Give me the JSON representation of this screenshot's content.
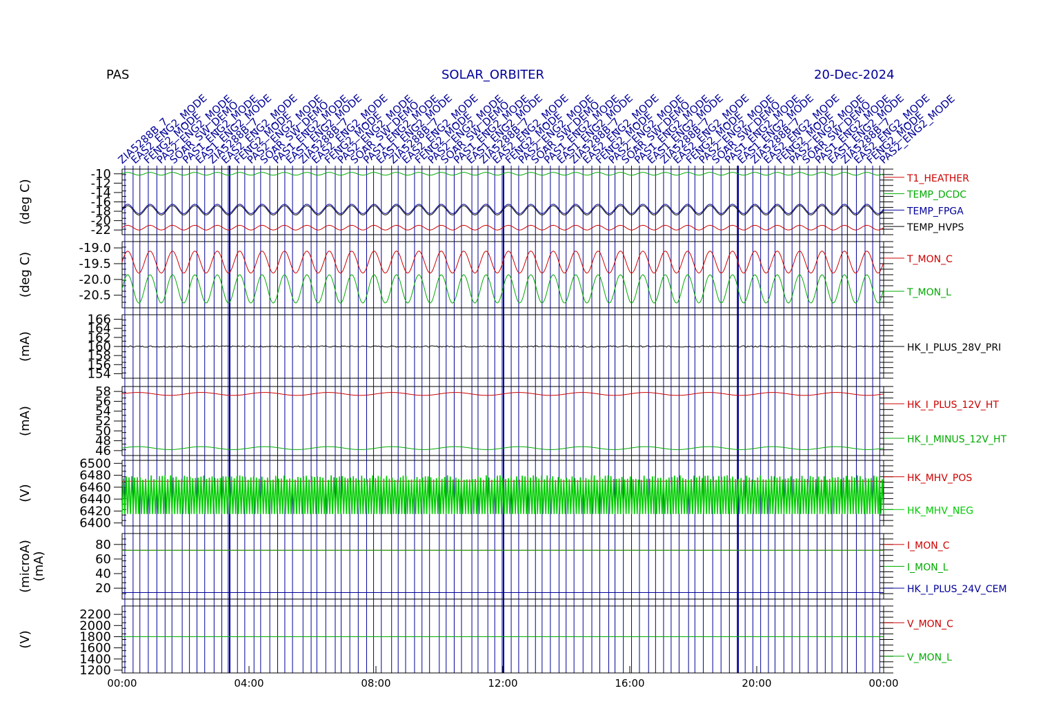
{
  "chart_data": {
    "type": "line",
    "instrument": "PAS",
    "mission": "SOLAR_ORBITER",
    "date": "20-Dec-2024",
    "colors": {
      "red": "#cc0000",
      "green": "#00aa00",
      "blue": "#000099",
      "black": "#000000",
      "bright_green": "#00cc00"
    },
    "x_axis": {
      "ticks": [
        "00:00",
        "04:00",
        "08:00",
        "12:00",
        "16:00",
        "20:00",
        "00:00"
      ]
    },
    "event_labels": [
      "ZIA5288B_7",
      "EAS2_ENG2_MODE",
      "FENG2_MODE",
      "PAS2_ENG2_MODE",
      "SOAR_SW_DEMO",
      "PAS1_ENG2_MODE",
      "EAS1_ENG2_MODE"
    ],
    "panels": [
      {
        "ylabel": "(deg C)",
        "ticks": [
          "-10",
          "-12",
          "-14",
          "-16",
          "-18",
          "-20",
          "-22"
        ],
        "ylim": [
          -23,
          -9
        ],
        "series": [
          {
            "name": "T1_HEATHER",
            "color": "red",
            "base": -21.5,
            "amp": 0.5,
            "cycles": 34
          },
          {
            "name": "TEMP_DCDC",
            "color": "green",
            "base": -10,
            "amp": 0.3,
            "cycles": 34
          },
          {
            "name": "TEMP_FPGA",
            "color": "blue",
            "base": -17.5,
            "amp": 1,
            "cycles": 34
          },
          {
            "name": "TEMP_HVPS",
            "color": "black",
            "base": -17.8,
            "amp": 1,
            "cycles": 34
          }
        ]
      },
      {
        "ylabel": "(deg C)",
        "ticks": [
          "-19.0",
          "-19.5",
          "-20.0",
          "-20.5"
        ],
        "ylim": [
          -20.9,
          -18.8
        ],
        "series": [
          {
            "name": "T_MON_C",
            "color": "red",
            "base": -19.45,
            "amp": 0.35,
            "cycles": 34
          },
          {
            "name": "T_MON_L",
            "color": "green",
            "base": -20.3,
            "amp": 0.45,
            "cycles": 34
          }
        ]
      },
      {
        "ylabel": "(mA)",
        "ticks": [
          "166",
          "164",
          "162",
          "160",
          "158",
          "156",
          "154"
        ],
        "ylim": [
          153,
          167
        ],
        "series": [
          {
            "name": "HK_I_PLUS_28V_PRI",
            "color": "black",
            "base": 160,
            "amp": 0.15,
            "cycles": 0
          }
        ]
      },
      {
        "ylabel": "(mA)",
        "ticks": [
          "58",
          "56",
          "54",
          "52",
          "50",
          "48",
          "46"
        ],
        "ylim": [
          45,
          59
        ],
        "series": [
          {
            "name": "HK_I_PLUS_12V_HT",
            "color": "red",
            "base": 57.5,
            "amp": 0.3,
            "cycles": 12
          },
          {
            "name": "HK_I_MINUS_12V_HT",
            "color": "green",
            "base": 46.5,
            "amp": 0.3,
            "cycles": 12
          }
        ]
      },
      {
        "ylabel": "(V)",
        "ticks": [
          "6500",
          "6480",
          "6460",
          "6440",
          "6420",
          "6400"
        ],
        "ylim": [
          6395,
          6505
        ],
        "series": [
          {
            "name": "HK_MHV_POS",
            "color": "red",
            "base": 6470,
            "amp": 0,
            "cycles": 0
          },
          {
            "name": "HK_MHV_NEG",
            "color": "bright_green",
            "base": 6450,
            "amp": 0,
            "cycles": 0,
            "band": [
              6415,
              6480
            ]
          }
        ]
      },
      {
        "ylabel": "(microA)",
        "ylabel2": "(mA)",
        "ticks": [
          "80",
          "60",
          "40",
          "20"
        ],
        "ylim": [
          5,
          95
        ],
        "series": [
          {
            "name": "I_MON_C",
            "color": "red",
            "base": 72,
            "amp": 0,
            "cycles": 0
          },
          {
            "name": "I_MON_L",
            "color": "green",
            "base": 72,
            "amp": 0,
            "cycles": 0
          },
          {
            "name": "HK_I_PLUS_24V_CEM",
            "color": "blue",
            "base": 14,
            "amp": 0,
            "cycles": 0
          }
        ]
      },
      {
        "ylabel": "(V)",
        "ticks": [
          "2200",
          "2000",
          "1800",
          "1600",
          "1400",
          "1200"
        ],
        "ylim": [
          1150,
          2350
        ],
        "series": [
          {
            "name": "V_MON_C",
            "color": "red",
            "base": 1800,
            "amp": 0,
            "cycles": 0
          },
          {
            "name": "V_MON_L",
            "color": "green",
            "base": 1800,
            "amp": 0,
            "cycles": 0
          }
        ]
      }
    ]
  }
}
